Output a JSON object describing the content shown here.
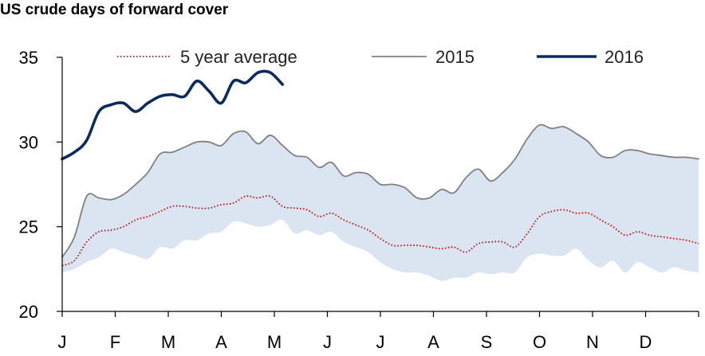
{
  "chart_data": {
    "type": "line",
    "title": "US crude days of forward cover",
    "xlabel": "",
    "ylabel": "",
    "x_tick_labels": [
      "J",
      "F",
      "M",
      "A",
      "M",
      "J",
      "J",
      "A",
      "S",
      "O",
      "N",
      "D"
    ],
    "ylim": [
      20,
      35
    ],
    "yticks": [
      20,
      25,
      30,
      35
    ],
    "grid": false,
    "legend_placement": "top",
    "x_range": [
      0,
      52
    ],
    "band": {
      "color": "#dbe5f1",
      "weeks": [
        0,
        1,
        2,
        3,
        4,
        5,
        6,
        7,
        8,
        9,
        10,
        11,
        12,
        13,
        14,
        15,
        16,
        17,
        18,
        19,
        20,
        21,
        22,
        23,
        24,
        25,
        26,
        27,
        28,
        29,
        30,
        31,
        32,
        33,
        34,
        35,
        36,
        37,
        38,
        39,
        40,
        41,
        42,
        43,
        44,
        45,
        46,
        47,
        48,
        49,
        50,
        51,
        52
      ],
      "upper": [
        23.2,
        24.4,
        26.8,
        26.7,
        26.6,
        26.9,
        27.5,
        28.2,
        29.3,
        29.4,
        29.7,
        30.0,
        30.0,
        29.8,
        30.5,
        30.6,
        29.9,
        30.4,
        29.8,
        29.2,
        29.1,
        28.5,
        28.8,
        28.0,
        28.2,
        28.1,
        27.5,
        27.5,
        27.3,
        26.7,
        26.7,
        27.2,
        27.0,
        27.9,
        28.4,
        27.7,
        28.2,
        29.0,
        30.2,
        31.0,
        30.8,
        30.9,
        30.5,
        30.0,
        29.2,
        29.1,
        29.5,
        29.5,
        29.3,
        29.2,
        29.1,
        29.1,
        29.0
      ],
      "lower": [
        22.3,
        22.5,
        22.9,
        23.2,
        23.7,
        23.5,
        23.3,
        23.1,
        23.8,
        23.7,
        24.2,
        24.2,
        24.6,
        24.7,
        25.3,
        25.2,
        25.0,
        25.1,
        25.4,
        24.6,
        24.8,
        24.5,
        24.7,
        24.1,
        23.8,
        23.5,
        22.9,
        22.5,
        22.3,
        22.3,
        22.1,
        21.8,
        22.0,
        22.0,
        22.3,
        22.2,
        22.3,
        22.3,
        23.2,
        23.4,
        23.3,
        23.3,
        23.7,
        23.0,
        22.6,
        23.0,
        22.3,
        22.9,
        22.6,
        22.3,
        22.6,
        22.4,
        22.3
      ]
    },
    "series": [
      {
        "name": "5 year average",
        "color": "#c00000",
        "style": "dotted",
        "weeks": [
          0,
          1,
          2,
          3,
          4,
          5,
          6,
          7,
          8,
          9,
          10,
          11,
          12,
          13,
          14,
          15,
          16,
          17,
          18,
          19,
          20,
          21,
          22,
          23,
          24,
          25,
          26,
          27,
          28,
          29,
          30,
          31,
          32,
          33,
          34,
          35,
          36,
          37,
          38,
          39,
          40,
          41,
          42,
          43,
          44,
          45,
          46,
          47,
          48,
          49,
          50,
          51,
          52
        ],
        "values": [
          22.7,
          23.0,
          24.1,
          24.7,
          24.8,
          25.0,
          25.4,
          25.6,
          25.9,
          26.2,
          26.2,
          26.1,
          26.1,
          26.3,
          26.4,
          26.8,
          26.7,
          26.8,
          26.2,
          26.1,
          26.0,
          25.6,
          25.8,
          25.4,
          25.1,
          24.8,
          24.3,
          23.9,
          23.9,
          23.9,
          23.8,
          23.7,
          23.8,
          23.5,
          24.0,
          24.1,
          24.1,
          23.8,
          24.6,
          25.6,
          25.9,
          26.0,
          25.8,
          25.8,
          25.4,
          25.0,
          24.5,
          24.7,
          24.5,
          24.4,
          24.3,
          24.2,
          24.0
        ]
      },
      {
        "name": "2015",
        "color": "#808080",
        "style": "solid",
        "weeks": [
          0,
          1,
          2,
          3,
          4,
          5,
          6,
          7,
          8,
          9,
          10,
          11,
          12,
          13,
          14,
          15,
          16,
          17,
          18,
          19,
          20,
          21,
          22,
          23,
          24,
          25,
          26,
          27,
          28,
          29,
          30,
          31,
          32,
          33,
          34,
          35,
          36,
          37,
          38,
          39,
          40,
          41,
          42,
          43,
          44,
          45,
          46,
          47,
          48,
          49,
          50,
          51,
          52
        ],
        "values": [
          23.2,
          24.4,
          26.8,
          26.7,
          26.6,
          26.9,
          27.5,
          28.2,
          29.3,
          29.4,
          29.7,
          30.0,
          30.0,
          29.8,
          30.5,
          30.6,
          29.9,
          30.4,
          29.8,
          29.2,
          29.1,
          28.5,
          28.8,
          28.0,
          28.2,
          28.1,
          27.5,
          27.5,
          27.3,
          26.7,
          26.7,
          27.2,
          27.0,
          27.9,
          28.4,
          27.7,
          28.2,
          29.0,
          30.2,
          31.0,
          30.8,
          30.9,
          30.5,
          30.0,
          29.2,
          29.1,
          29.5,
          29.5,
          29.3,
          29.2,
          29.1,
          29.1,
          29.0
        ]
      },
      {
        "name": "2016",
        "color": "#0b2a5e",
        "style": "solid",
        "weeks": [
          0,
          1,
          2,
          3,
          4,
          5,
          6,
          7,
          8,
          9,
          10,
          11,
          12,
          13,
          14,
          15,
          16,
          17,
          18,
          19,
          20
        ],
        "values": [
          29.0,
          29.4,
          30.1,
          31.8,
          32.2,
          32.3,
          31.8,
          32.3,
          32.7,
          32.8,
          32.7,
          33.6,
          33.0,
          32.3,
          33.6,
          33.5,
          34.1,
          34.1,
          33.4,
          null,
          null
        ]
      }
    ]
  }
}
